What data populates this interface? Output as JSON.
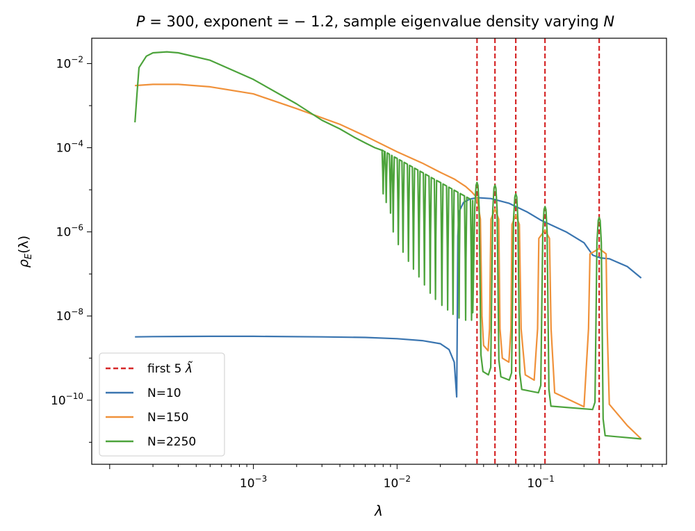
{
  "chart_data": {
    "type": "line",
    "title": "P = 300, exponent = − 1.2, sample eigenvalue density varying N",
    "title_math": {
      "P": "P",
      "eq1": " = 300, exponent = − 1.2, sample eigenvalue density varying ",
      "N": "N"
    },
    "xlabel": "λ",
    "ylabel": "ρE(λ)",
    "ylabel_parts": {
      "rho": "ρ",
      "sub": "E",
      "arg": "(λ)"
    },
    "xscale": "log",
    "yscale": "log",
    "xlim": [
      7.5e-05,
      0.75
    ],
    "ylim": [
      3e-12,
      0.04
    ],
    "grid": false,
    "legend_position": "lower-left",
    "xticks": [
      {
        "value": 0.001,
        "base": "10",
        "exp": "−3"
      },
      {
        "value": 0.01,
        "base": "10",
        "exp": "−2"
      },
      {
        "value": 0.1,
        "base": "10",
        "exp": "−1"
      }
    ],
    "yticks": [
      {
        "value": 0.01,
        "base": "10",
        "exp": "−2"
      },
      {
        "value": 0.0001,
        "base": "10",
        "exp": "−4"
      },
      {
        "value": 1e-06,
        "base": "10",
        "exp": "−6"
      },
      {
        "value": 1e-08,
        "base": "10",
        "exp": "−8"
      },
      {
        "value": 1e-10,
        "base": "10",
        "exp": "−10"
      }
    ],
    "vlines": {
      "name": "first 5 λ̃",
      "legend_text": "first 5 ",
      "legend_symbol": "λ̃",
      "color": "#d62728",
      "style": "dashed",
      "x": [
        0.036,
        0.048,
        0.067,
        0.107,
        0.255
      ]
    },
    "series": [
      {
        "name": "N=10",
        "color": "#3a75b0",
        "points": [
          [
            0.00015,
            3.2e-09
          ],
          [
            0.0002,
            3.25e-09
          ],
          [
            0.0005,
            3.3e-09
          ],
          [
            0.001,
            3.3e-09
          ],
          [
            0.003,
            3.2e-09
          ],
          [
            0.006,
            3.1e-09
          ],
          [
            0.01,
            2.9e-09
          ],
          [
            0.015,
            2.6e-09
          ],
          [
            0.02,
            2.2e-09
          ],
          [
            0.023,
            1.6e-09
          ],
          [
            0.025,
            8e-10
          ],
          [
            0.0255,
            3e-10
          ],
          [
            0.026,
            1.2e-10
          ],
          [
            0.0262,
            3e-09
          ],
          [
            0.0265,
            8e-07
          ],
          [
            0.027,
            3e-06
          ],
          [
            0.029,
            5e-06
          ],
          [
            0.032,
            6e-06
          ],
          [
            0.036,
            6.5e-06
          ],
          [
            0.045,
            6.2e-06
          ],
          [
            0.06,
            4.8e-06
          ],
          [
            0.08,
            3e-06
          ],
          [
            0.1,
            1.9e-06
          ],
          [
            0.15,
            1e-06
          ],
          [
            0.2,
            5.5e-07
          ],
          [
            0.23,
            2.8e-07
          ],
          [
            0.26,
            2.4e-07
          ],
          [
            0.3,
            2.3e-07
          ],
          [
            0.4,
            1.5e-07
          ],
          [
            0.5,
            8e-08
          ]
        ]
      },
      {
        "name": "N=150",
        "color": "#f0913a",
        "points": [
          [
            0.00015,
            0.003
          ],
          [
            0.0002,
            0.0032
          ],
          [
            0.0003,
            0.0032
          ],
          [
            0.0005,
            0.0028
          ],
          [
            0.001,
            0.0019
          ],
          [
            0.002,
            0.00085
          ],
          [
            0.004,
            0.00036
          ],
          [
            0.006,
            0.00019
          ],
          [
            0.01,
            8e-05
          ],
          [
            0.015,
            4.3e-05
          ],
          [
            0.02,
            2.6e-05
          ],
          [
            0.025,
            1.8e-05
          ],
          [
            0.03,
            1.2e-05
          ],
          [
            0.033,
            9e-06
          ],
          [
            0.036,
            6.5e-06
          ],
          [
            0.038,
            2e-06
          ],
          [
            0.039,
            1e-08
          ],
          [
            0.04,
            2e-09
          ],
          [
            0.043,
            1.5e-09
          ],
          [
            0.044,
            5e-09
          ],
          [
            0.045,
            2e-06
          ],
          [
            0.048,
            3.5e-06
          ],
          [
            0.051,
            2e-06
          ],
          [
            0.052,
            5e-09
          ],
          [
            0.054,
            1e-09
          ],
          [
            0.06,
            8e-10
          ],
          [
            0.062,
            5e-09
          ],
          [
            0.063,
            1.5e-06
          ],
          [
            0.067,
            2.5e-06
          ],
          [
            0.071,
            1.5e-06
          ],
          [
            0.073,
            5e-09
          ],
          [
            0.078,
            4e-10
          ],
          [
            0.09,
            3e-10
          ],
          [
            0.095,
            5e-09
          ],
          [
            0.097,
            7e-07
          ],
          [
            0.107,
            1.1e-06
          ],
          [
            0.115,
            7e-07
          ],
          [
            0.118,
            5e-09
          ],
          [
            0.125,
            1.5e-10
          ],
          [
            0.16,
            1e-10
          ],
          [
            0.2,
            7e-11
          ],
          [
            0.215,
            5e-09
          ],
          [
            0.22,
            3e-07
          ],
          [
            0.255,
            4e-07
          ],
          [
            0.285,
            3e-07
          ],
          [
            0.29,
            5e-09
          ],
          [
            0.3,
            8e-11
          ],
          [
            0.4,
            2.5e-11
          ],
          [
            0.5,
            1.2e-11
          ]
        ]
      },
      {
        "name": "N=2250",
        "color": "#4ca33b",
        "points": [
          [
            0.00015,
            0.0004
          ],
          [
            0.000155,
            0.002
          ],
          [
            0.00016,
            0.008
          ],
          [
            0.00018,
            0.015
          ],
          [
            0.0002,
            0.018
          ],
          [
            0.00025,
            0.019
          ],
          [
            0.0003,
            0.018
          ],
          [
            0.0005,
            0.012
          ],
          [
            0.001,
            0.0042
          ],
          [
            0.002,
            0.0011
          ],
          [
            0.003,
            0.00045
          ],
          [
            0.004,
            0.00028
          ],
          [
            0.005,
            0.00018
          ],
          [
            0.006,
            0.00013
          ],
          [
            0.007,
            0.0001
          ],
          [
            0.008,
            8.5e-05
          ]
        ],
        "dips": [
          [
            0.008,
            8e-06
          ],
          [
            0.0084,
            5e-06
          ],
          [
            0.009,
            2.8e-06
          ],
          [
            0.0094,
            1e-06
          ],
          [
            0.0102,
            5e-07
          ],
          [
            0.011,
            3.3e-07
          ],
          [
            0.012,
            2e-07
          ],
          [
            0.013,
            1.3e-07
          ],
          [
            0.0142,
            8.5e-08
          ],
          [
            0.0155,
            5.5e-08
          ],
          [
            0.017,
            3.5e-08
          ],
          [
            0.0185,
            2.5e-08
          ],
          [
            0.0205,
            1.8e-08
          ],
          [
            0.0225,
            1.4e-08
          ],
          [
            0.0245,
            1.1e-08
          ],
          [
            0.027,
            9e-09
          ],
          [
            0.03,
            8e-09
          ],
          [
            0.033,
            8e-09
          ]
        ],
        "peaks": [
          [
            0.036,
            1.5e-05,
            0.042,
            4e-10
          ],
          [
            0.048,
            1.3e-05,
            0.056,
            3e-10
          ],
          [
            0.067,
            8e-06,
            0.08,
            1.5e-10
          ],
          [
            0.107,
            4e-06,
            0.125,
            6e-11
          ],
          [
            0.255,
            2.2e-06,
            0.5,
            1.2e-11
          ]
        ]
      }
    ]
  }
}
